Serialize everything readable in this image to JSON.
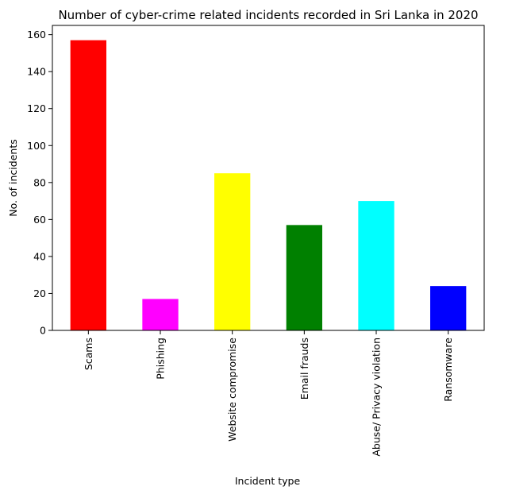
{
  "chart_data": {
    "type": "bar",
    "title": "Number of cyber-crime related incidents recorded in Sri Lanka in 2020",
    "xlabel": "Incident type",
    "ylabel": "No. of incidents",
    "categories": [
      "Scams",
      "Phishing",
      "Website compromise",
      "Email frauds",
      "Abuse/ Privacy violation",
      "Ransomware"
    ],
    "values": [
      157,
      17,
      85,
      57,
      70,
      24
    ],
    "colors": [
      "#ff0000",
      "#ff00ff",
      "#ffff00",
      "#008000",
      "#00ffff",
      "#0000ff"
    ],
    "ylim": [
      0,
      165
    ],
    "yticks": [
      0,
      20,
      40,
      60,
      80,
      100,
      120,
      140,
      160
    ],
    "grid": false,
    "legend": "none"
  }
}
